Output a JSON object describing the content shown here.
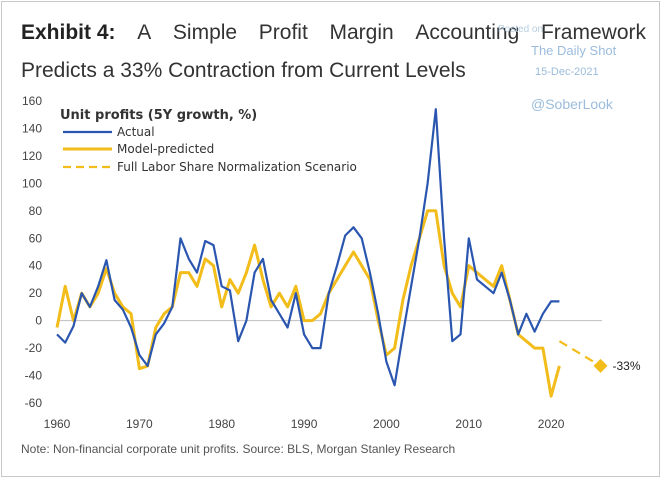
{
  "title": {
    "exhibit": "Exhibit 4:",
    "line1_words": [
      "A",
      "Simple",
      "Profit",
      "Margin",
      "Accounting",
      "Framework"
    ],
    "line2": "Predicts a 33% Contraction from Current Levels"
  },
  "watermark": {
    "poster": "Posted on",
    "source": "The Daily Shot",
    "date": "15-Dec-2021",
    "handle": "@SoberLook"
  },
  "note": "Note: Non-financial corporate unit profits. Source: BLS, Morgan Stanley Research",
  "colors": {
    "actual": "#2b56b0",
    "model": "#f2bd1a",
    "scenario": "#f2bd1a",
    "zero_line": "#bfbfbf"
  },
  "chart_data": {
    "type": "line",
    "title": "Unit profits (5Y growth, %)",
    "xlabel": "",
    "ylabel": "",
    "xlim": [
      1960,
      2028
    ],
    "ylim": [
      -60,
      160
    ],
    "x_ticks": [
      1960,
      1970,
      1980,
      1990,
      2000,
      2010,
      2020
    ],
    "y_ticks": [
      160,
      140,
      120,
      100,
      80,
      60,
      40,
      20,
      0,
      -20,
      -40,
      -60
    ],
    "legend_position": "top-left",
    "series": [
      {
        "name": "Actual",
        "style": "solid",
        "x": [
          1960,
          1961,
          1962,
          1963,
          1964,
          1965,
          1966,
          1967,
          1968,
          1969,
          1970,
          1971,
          1972,
          1973,
          1974,
          1975,
          1976,
          1977,
          1978,
          1979,
          1980,
          1981,
          1982,
          1983,
          1984,
          1985,
          1986,
          1987,
          1988,
          1989,
          1990,
          1991,
          1992,
          1993,
          1994,
          1995,
          1996,
          1997,
          1998,
          1999,
          2000,
          2001,
          2002,
          2003,
          2004,
          2005,
          2006,
          2007,
          2008,
          2009,
          2010,
          2011,
          2012,
          2013,
          2014,
          2015,
          2016,
          2017,
          2018,
          2019,
          2020,
          2021
        ],
        "values": [
          -10,
          -16,
          -4,
          20,
          10,
          25,
          44,
          15,
          8,
          -5,
          -25,
          -33,
          -10,
          -2,
          10,
          60,
          45,
          35,
          58,
          55,
          25,
          22,
          -15,
          0,
          35,
          45,
          15,
          5,
          -5,
          20,
          -10,
          -20,
          -20,
          20,
          40,
          62,
          68,
          60,
          35,
          5,
          -30,
          -47,
          -10,
          25,
          60,
          100,
          154,
          60,
          -15,
          -10,
          60,
          30,
          25,
          20,
          35,
          15,
          -10,
          5,
          -8,
          5,
          14,
          14
        ]
      },
      {
        "name": "Model-predicted",
        "style": "solid",
        "x": [
          1960,
          1961,
          1962,
          1963,
          1964,
          1965,
          1966,
          1967,
          1968,
          1969,
          1970,
          1971,
          1972,
          1973,
          1974,
          1975,
          1976,
          1977,
          1978,
          1979,
          1980,
          1981,
          1982,
          1983,
          1984,
          1985,
          1986,
          1987,
          1988,
          1989,
          1990,
          1991,
          1992,
          1993,
          1994,
          1995,
          1996,
          1997,
          1998,
          1999,
          2000,
          2001,
          2002,
          2003,
          2004,
          2005,
          2006,
          2007,
          2008,
          2009,
          2010,
          2011,
          2012,
          2013,
          2014,
          2015,
          2016,
          2017,
          2018,
          2019,
          2020,
          2021
        ],
        "values": [
          -5,
          25,
          0,
          20,
          10,
          20,
          38,
          20,
          10,
          5,
          -35,
          -33,
          -5,
          5,
          10,
          35,
          35,
          25,
          45,
          40,
          10,
          30,
          20,
          35,
          55,
          30,
          10,
          20,
          10,
          25,
          0,
          0,
          5,
          20,
          30,
          40,
          50,
          40,
          30,
          0,
          -25,
          -20,
          15,
          40,
          60,
          80,
          80,
          40,
          20,
          10,
          40,
          35,
          30,
          25,
          40,
          15,
          -10,
          -15,
          -20,
          -20,
          -55,
          -33
        ]
      },
      {
        "name": "Full Labor Share Normalization Scenario",
        "style": "dashed",
        "x": [
          2021,
          2026
        ],
        "values": [
          -15,
          -33
        ]
      }
    ],
    "annotations": [
      {
        "x": 2026,
        "y": -33,
        "text": "-33%"
      }
    ]
  }
}
